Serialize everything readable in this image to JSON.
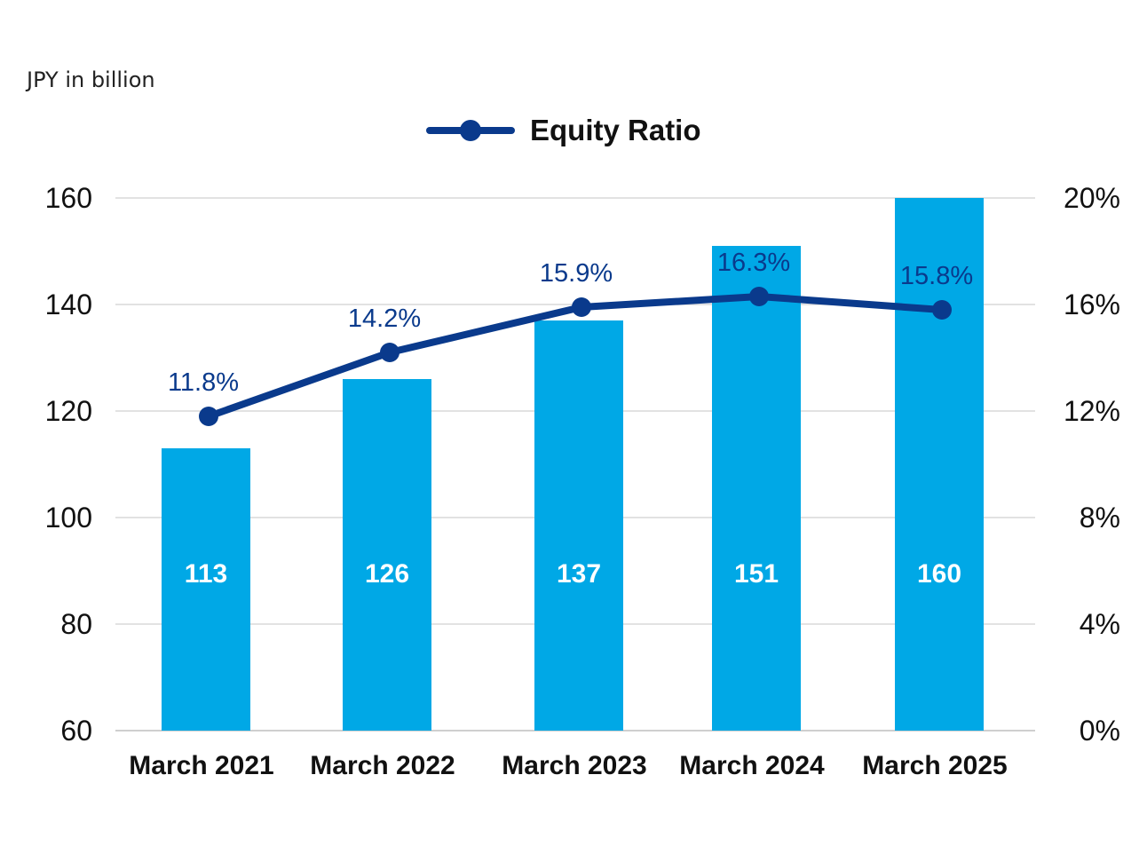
{
  "chart_data": {
    "type": "bar",
    "unit_label": "JPY in billion",
    "categories": [
      "March 2021",
      "March 2022",
      "March 2023",
      "March 2024",
      "March 2025"
    ],
    "bar_series": {
      "values": [
        113,
        126,
        137,
        151,
        160
      ],
      "labels": [
        "113",
        "126",
        "137",
        "151",
        "160"
      ],
      "color": "#00a8e6"
    },
    "line_series": {
      "name": "Equity Ratio",
      "values": [
        11.8,
        14.2,
        15.9,
        16.3,
        15.8
      ],
      "labels": [
        "11.8%",
        "14.2%",
        "15.9%",
        "16.3%",
        "15.8%"
      ],
      "color": "#0a3a8c"
    },
    "y_left": {
      "min": 60,
      "max": 160,
      "ticks": [
        "160",
        "140",
        "120",
        "100",
        "80",
        "60"
      ]
    },
    "y_right": {
      "min": 0,
      "max": 20,
      "ticks": [
        "20%",
        "16%",
        "12%",
        "8%",
        "4%",
        "0%"
      ]
    },
    "grid": true,
    "legend_position": "top-center"
  }
}
